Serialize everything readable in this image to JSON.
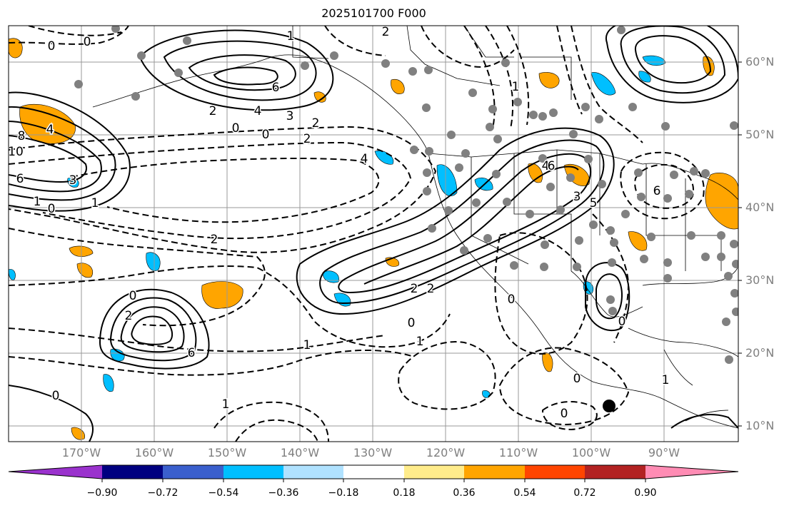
{
  "title": "2025101700 F000",
  "lat_labels": [
    "60°N",
    "50°N",
    "40°N",
    "30°N",
    "20°N",
    "10°N"
  ],
  "lon_labels": [
    "170°W",
    "160°W",
    "150°W",
    "140°W",
    "130°W",
    "120°W",
    "110°W",
    "100°W",
    "90°W"
  ],
  "colorbar": {
    "ticks": [
      "−0.90",
      "−0.72",
      "−0.54",
      "−0.36",
      "−0.18",
      "0.18",
      "0.36",
      "0.54",
      "0.72",
      "0.90"
    ],
    "colors": [
      "#9a32cd",
      "#000080",
      "#3a5fcd",
      "#00bfff",
      "#b0e2ff",
      "#ffffff",
      "#ffec8b",
      "#ffa500",
      "#ff4500",
      "#b22222",
      "#ff8cb4"
    ]
  },
  "contour_labels": [
    "0",
    "0",
    "1",
    "2",
    "6",
    "4",
    "3",
    "2",
    "0",
    "0",
    "2",
    "2",
    "4",
    "10",
    "8",
    "4",
    "6",
    "3",
    "1",
    "1",
    "0",
    "2",
    "4",
    "6",
    "6",
    "3",
    "5",
    "2",
    "2",
    "0",
    "1",
    "1",
    "0",
    "2",
    "6",
    "0",
    "1",
    "0",
    "0",
    "0",
    "1",
    "0",
    "1"
  ],
  "colors": {
    "pos_fill": "#ffa500",
    "neg_fill": "#00bfff",
    "grid": "#999999",
    "station": "#808080"
  }
}
